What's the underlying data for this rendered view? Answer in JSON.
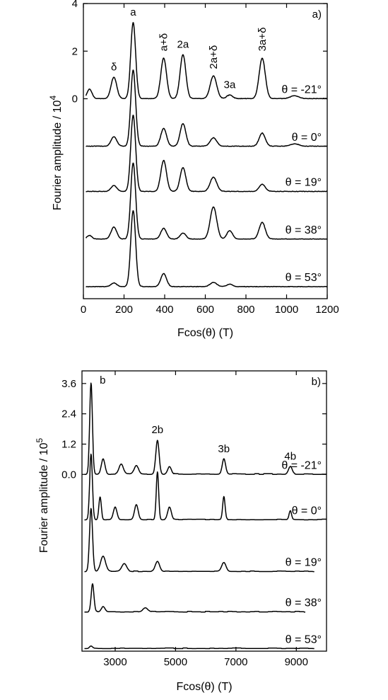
{
  "chart_data": [
    {
      "panel": "a)",
      "type": "line",
      "xlabel": "Fcos(θ) (T)",
      "ylabel": "Fourier amplitude / 10",
      "ylabel_exp": "4",
      "xlim": [
        0,
        1200
      ],
      "ylim": [
        -8.4,
        4
      ],
      "x_ticks": [
        0,
        200,
        400,
        600,
        800,
        1000,
        1200
      ],
      "y_ticks": [
        0,
        2,
        4
      ],
      "y_tick_labels": [
        "0",
        "2",
        "4"
      ],
      "peak_labels": [
        {
          "text": "δ",
          "x": 150
        },
        {
          "text": "a",
          "x": 245
        },
        {
          "text": "a+δ",
          "x": 395
        },
        {
          "text": "2a",
          "x": 490
        },
        {
          "text": "2a+δ",
          "x": 640
        },
        {
          "text": "3a",
          "x": 720
        },
        {
          "text": "3a+δ",
          "x": 880
        }
      ],
      "series": [
        {
          "label": "θ =  -21°",
          "baseline": 0,
          "peaks": [
            [
              30,
              0.4,
              12
            ],
            [
              150,
              0.9,
              14
            ],
            [
              245,
              3.2,
              12
            ],
            [
              395,
              1.7,
              14
            ],
            [
              490,
              1.85,
              14
            ],
            [
              640,
              0.95,
              16
            ],
            [
              720,
              0.15,
              14
            ],
            [
              880,
              1.7,
              15
            ],
            [
              1040,
              0.12,
              20
            ]
          ]
        },
        {
          "label": "θ =  0°",
          "baseline": -2.0,
          "peaks": [
            [
              150,
              0.4,
              14
            ],
            [
              245,
              3.2,
              12
            ],
            [
              395,
              0.75,
              14
            ],
            [
              490,
              0.95,
              14
            ],
            [
              640,
              0.35,
              16
            ],
            [
              880,
              0.55,
              15
            ],
            [
              1040,
              0.1,
              20
            ]
          ]
        },
        {
          "label": "θ = 19°",
          "baseline": -3.9,
          "peaks": [
            [
              150,
              0.25,
              14
            ],
            [
              245,
              3.2,
              12
            ],
            [
              395,
              1.3,
              14
            ],
            [
              490,
              1.0,
              14
            ],
            [
              640,
              0.6,
              16
            ],
            [
              880,
              0.3,
              15
            ]
          ]
        },
        {
          "label": "θ = 38°",
          "baseline": -5.9,
          "peaks": [
            [
              30,
              0.15,
              12
            ],
            [
              150,
              0.5,
              14
            ],
            [
              245,
              3.2,
              12
            ],
            [
              395,
              0.45,
              14
            ],
            [
              490,
              0.25,
              14
            ],
            [
              640,
              1.35,
              16
            ],
            [
              720,
              0.35,
              14
            ],
            [
              880,
              0.7,
              15
            ]
          ]
        },
        {
          "label": "θ = 53°",
          "baseline": -7.9,
          "peaks": [
            [
              150,
              0.15,
              14
            ],
            [
              245,
              3.2,
              12
            ],
            [
              395,
              0.55,
              14
            ],
            [
              640,
              0.18,
              16
            ],
            [
              720,
              0.1,
              14
            ]
          ]
        }
      ]
    },
    {
      "panel": "b)",
      "type": "line",
      "xlabel": "Fcos(θ) (T)",
      "ylabel": "Fourier amplitude / 10",
      "ylabel_exp": "5",
      "xlim": [
        1900,
        10000
      ],
      "ylim": [
        -7.0,
        4.1
      ],
      "x_ticks": [
        3000,
        5000,
        7000,
        9000
      ],
      "y_ticks": [
        0,
        1.2,
        2.4,
        3.6
      ],
      "y_tick_labels": [
        "0.0",
        "1.2",
        "2.4",
        "3.6"
      ],
      "peak_labels": [
        {
          "text": "b",
          "x": 2300
        },
        {
          "text": "2b",
          "x": 4400
        },
        {
          "text": "3b",
          "x": 6600
        },
        {
          "text": "4b",
          "x": 8800
        }
      ],
      "series": [
        {
          "label": "θ =  -21°",
          "baseline": 0,
          "xmax": 10000,
          "peaks": [
            [
              2200,
              3.6,
              45
            ],
            [
              2600,
              0.6,
              60
            ],
            [
              3200,
              0.4,
              70
            ],
            [
              3700,
              0.35,
              70
            ],
            [
              4400,
              1.35,
              55
            ],
            [
              4800,
              0.3,
              60
            ],
            [
              6600,
              0.6,
              55
            ],
            [
              8800,
              0.3,
              60
            ]
          ]
        },
        {
          "label": "θ =  0°",
          "baseline": -1.8,
          "xmax": 10000,
          "peaks": [
            [
              2200,
              2.6,
              45
            ],
            [
              2500,
              0.9,
              40
            ],
            [
              3000,
              0.5,
              60
            ],
            [
              3700,
              0.6,
              60
            ],
            [
              4400,
              1.9,
              40
            ],
            [
              4800,
              0.5,
              60
            ],
            [
              6600,
              0.9,
              40
            ],
            [
              8800,
              0.35,
              40
            ]
          ]
        },
        {
          "label": "θ = 19°",
          "baseline": -3.85,
          "xmax": 9600,
          "peaks": [
            [
              2200,
              2.5,
              50
            ],
            [
              2600,
              0.6,
              80
            ],
            [
              3300,
              0.3,
              80
            ],
            [
              4400,
              0.4,
              70
            ],
            [
              6600,
              0.35,
              70
            ]
          ]
        },
        {
          "label": "θ = 38°",
          "baseline": -5.45,
          "xmax": 9300,
          "peaks": [
            [
              2250,
              1.1,
              45
            ],
            [
              2600,
              0.2,
              60
            ],
            [
              4000,
              0.15,
              80
            ]
          ]
        },
        {
          "label": "θ = 53°",
          "baseline": -6.9,
          "xmax": 9600,
          "peaks": [
            [
              2200,
              0.1,
              50
            ]
          ]
        }
      ]
    }
  ]
}
